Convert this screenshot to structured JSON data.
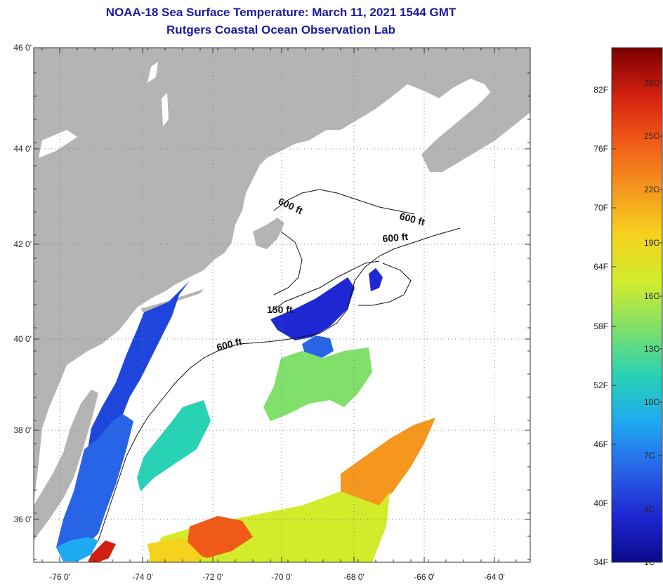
{
  "title": {
    "line1": "NOAA-18 Sea Surface Temperature:  March 11, 2021 1544 GMT",
    "line2": "Rutgers Coastal Ocean Observation Lab"
  },
  "map": {
    "lat_labels": [
      "46 0'",
      "44 0'",
      "42 0'",
      "40 0'",
      "38 0'",
      "36 0'"
    ],
    "lon_labels": [
      "-76 0'",
      "-74 0'",
      "-72 0'",
      "-70 0'",
      "-68 0'",
      "-66 0'",
      "-64 0'"
    ],
    "contour_labels": [
      "600 ft",
      "600 ft",
      "600 ft",
      "150 ft",
      "600 ft"
    ],
    "colors": {
      "land": "#b4b4b4",
      "ocean_nodata": "#ffffff",
      "grid": "#808080"
    }
  },
  "colorbar": {
    "fahrenheit_labels": [
      "82F",
      "76F",
      "70F",
      "64F",
      "58F",
      "52F",
      "46F",
      "40F",
      "34F"
    ],
    "celsius_labels": [
      "28C",
      "25C",
      "22C",
      "19C",
      "16C",
      "13C",
      "10C",
      "7C",
      "4C",
      "1C"
    ],
    "gradient": [
      "#7a0000",
      "#d21f10",
      "#f05a18",
      "#f5961e",
      "#f5d21e",
      "#d2ec2c",
      "#80e06a",
      "#28d2b4",
      "#1eaaf0",
      "#2864e6",
      "#1e28d2",
      "#0a0a8c"
    ]
  }
}
